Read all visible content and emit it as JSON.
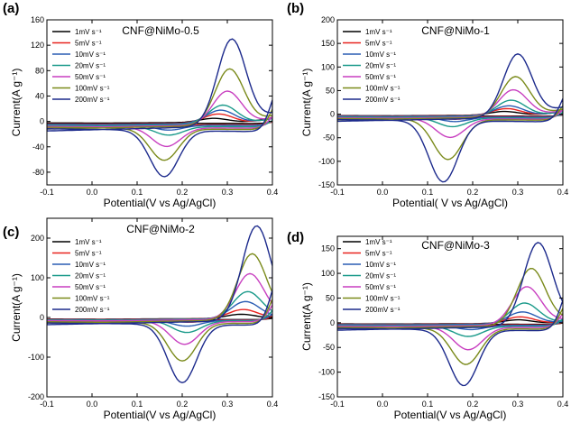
{
  "chart_data": [
    {
      "type": "line",
      "panel": "(a)",
      "title": "CNF@NiMo-0.5",
      "xlabel": "Potential(V vs Ag/AgCl)",
      "ylabel": "Current(A g⁻¹)",
      "xlim": [
        -0.1,
        0.4
      ],
      "ylim": [
        -100,
        160
      ],
      "xticks": [
        "-0.1",
        "0.0",
        "0.1",
        "0.2",
        "0.3",
        "0.4"
      ],
      "yticks": [
        "-80",
        "-40",
        "0",
        "40",
        "80",
        "120",
        "160"
      ],
      "legend_position": "upper-left",
      "series": [
        {
          "name": "1mV s⁻¹",
          "color": "#000000",
          "anodic_peak": [
            0.27,
            5
          ],
          "cathodic_peak": [
            0.17,
            -4
          ],
          "start_current": -3
        },
        {
          "name": "5mV s⁻¹",
          "color": "#e8231f",
          "anodic_peak": [
            0.28,
            12
          ],
          "cathodic_peak": [
            0.17,
            -9
          ],
          "start_current": -5
        },
        {
          "name": "10mV s⁻¹",
          "color": "#2a5db3",
          "anodic_peak": [
            0.285,
            18
          ],
          "cathodic_peak": [
            0.17,
            -14
          ],
          "start_current": -6
        },
        {
          "name": "20mV s⁻¹",
          "color": "#1a9a8a",
          "anodic_peak": [
            0.29,
            26
          ],
          "cathodic_peak": [
            0.17,
            -22
          ],
          "start_current": -8
        },
        {
          "name": "50mV s⁻¹",
          "color": "#c83fc0",
          "anodic_peak": [
            0.3,
            48
          ],
          "cathodic_peak": [
            0.165,
            -40
          ],
          "start_current": -10
        },
        {
          "name": "100mV s⁻¹",
          "color": "#7a8a1a",
          "anodic_peak": [
            0.305,
            83
          ],
          "cathodic_peak": [
            0.16,
            -62
          ],
          "start_current": -12
        },
        {
          "name": "200mV s⁻¹",
          "color": "#1c2a8c",
          "anodic_peak": [
            0.31,
            130
          ],
          "cathodic_peak": [
            0.16,
            -88
          ],
          "start_current": -15
        }
      ]
    },
    {
      "type": "line",
      "panel": "(b)",
      "title": "CNF@NiMo-1",
      "xlabel": "Potential( V vs Ag/AgCl)",
      "ylabel": "Current(A g⁻¹)",
      "xlim": [
        -0.1,
        0.4
      ],
      "ylim": [
        -150,
        200
      ],
      "xticks": [
        "-0.1",
        "0.0",
        "0.1",
        "0.2",
        "0.3",
        "0.4"
      ],
      "yticks": [
        "-150",
        "-100",
        "-50",
        "0",
        "50",
        "100",
        "150",
        "200"
      ],
      "legend_position": "upper-left",
      "series": [
        {
          "name": "1mV s⁻¹",
          "color": "#000000",
          "anodic_peak": [
            0.27,
            6
          ],
          "cathodic_peak": [
            0.16,
            -6
          ],
          "start_current": -4
        },
        {
          "name": "5mV s⁻¹",
          "color": "#e8231f",
          "anodic_peak": [
            0.275,
            12
          ],
          "cathodic_peak": [
            0.16,
            -11
          ],
          "start_current": -5
        },
        {
          "name": "10mV s⁻¹",
          "color": "#2a5db3",
          "anodic_peak": [
            0.28,
            18
          ],
          "cathodic_peak": [
            0.16,
            -16
          ],
          "start_current": -6
        },
        {
          "name": "20mV s⁻¹",
          "color": "#1a9a8a",
          "anodic_peak": [
            0.285,
            30
          ],
          "cathodic_peak": [
            0.155,
            -27
          ],
          "start_current": -8
        },
        {
          "name": "50mV s⁻¹",
          "color": "#c83fc0",
          "anodic_peak": [
            0.29,
            52
          ],
          "cathodic_peak": [
            0.15,
            -50
          ],
          "start_current": -10
        },
        {
          "name": "100mV s⁻¹",
          "color": "#7a8a1a",
          "anodic_peak": [
            0.295,
            80
          ],
          "cathodic_peak": [
            0.145,
            -97
          ],
          "start_current": -12
        },
        {
          "name": "200mV s⁻¹",
          "color": "#1c2a8c",
          "anodic_peak": [
            0.3,
            128
          ],
          "cathodic_peak": [
            0.135,
            -145
          ],
          "start_current": -15
        }
      ]
    },
    {
      "type": "line",
      "panel": "(c)",
      "title": "CNF@NiMo-2",
      "xlabel": "Potential(V vs Ag/AgCl)",
      "ylabel": "Current(A g⁻¹)",
      "xlim": [
        -0.1,
        0.4
      ],
      "ylim": [
        -200,
        250
      ],
      "xticks": [
        "-0.1",
        "0.0",
        "0.1",
        "0.2",
        "0.3",
        "0.4"
      ],
      "yticks": [
        "-200",
        "-100",
        "0",
        "100",
        "200"
      ],
      "legend_position": "upper-left",
      "series": [
        {
          "name": "1mV s⁻¹",
          "color": "#000000",
          "anodic_peak": [
            0.33,
            8
          ],
          "cathodic_peak": [
            0.22,
            -6
          ],
          "start_current": -5
        },
        {
          "name": "5mV s⁻¹",
          "color": "#e8231f",
          "anodic_peak": [
            0.335,
            20
          ],
          "cathodic_peak": [
            0.215,
            -12
          ],
          "start_current": -6
        },
        {
          "name": "10mV s⁻¹",
          "color": "#2a5db3",
          "anodic_peak": [
            0.34,
            40
          ],
          "cathodic_peak": [
            0.21,
            -22
          ],
          "start_current": -7
        },
        {
          "name": "20mV s⁻¹",
          "color": "#1a9a8a",
          "anodic_peak": [
            0.345,
            65
          ],
          "cathodic_peak": [
            0.21,
            -38
          ],
          "start_current": -8
        },
        {
          "name": "50mV s⁻¹",
          "color": "#c83fc0",
          "anodic_peak": [
            0.35,
            110
          ],
          "cathodic_peak": [
            0.205,
            -68
          ],
          "start_current": -10
        },
        {
          "name": "100mV s⁻¹",
          "color": "#7a8a1a",
          "anodic_peak": [
            0.355,
            160
          ],
          "cathodic_peak": [
            0.2,
            -110
          ],
          "start_current": -14
        },
        {
          "name": "200mV s⁻¹",
          "color": "#1c2a8c",
          "anodic_peak": [
            0.365,
            230
          ],
          "cathodic_peak": [
            0.2,
            -165
          ],
          "start_current": -18
        }
      ]
    },
    {
      "type": "line",
      "panel": "(d)",
      "title": "CNF@NiMo-3",
      "xlabel": "Potential(V vs Ag/AgCl)",
      "ylabel": "Current(A g⁻¹)",
      "xlim": [
        -0.1,
        0.4
      ],
      "ylim": [
        -150,
        175
      ],
      "xticks": [
        "-0.1",
        "0.0",
        "0.1",
        "0.2",
        "0.3",
        "0.4"
      ],
      "yticks": [
        "-150",
        "-100",
        "-50",
        "0",
        "50",
        "100",
        "150"
      ],
      "legend_position": "upper-left",
      "series": [
        {
          "name": "1mV s⁻¹",
          "color": "#000000",
          "anodic_peak": [
            0.3,
            6
          ],
          "cathodic_peak": [
            0.2,
            -4
          ],
          "start_current": -3
        },
        {
          "name": "5mV s⁻¹",
          "color": "#e8231f",
          "anodic_peak": [
            0.305,
            12
          ],
          "cathodic_peak": [
            0.195,
            -9
          ],
          "start_current": -4
        },
        {
          "name": "10mV s⁻¹",
          "color": "#2a5db3",
          "anodic_peak": [
            0.31,
            22
          ],
          "cathodic_peak": [
            0.195,
            -14
          ],
          "start_current": -5
        },
        {
          "name": "20mV s⁻¹",
          "color": "#1a9a8a",
          "anodic_peak": [
            0.315,
            40
          ],
          "cathodic_peak": [
            0.19,
            -28
          ],
          "start_current": -7
        },
        {
          "name": "50mV s⁻¹",
          "color": "#c83fc0",
          "anodic_peak": [
            0.32,
            73
          ],
          "cathodic_peak": [
            0.19,
            -55
          ],
          "start_current": -9
        },
        {
          "name": "100mV s⁻¹",
          "color": "#7a8a1a",
          "anodic_peak": [
            0.33,
            110
          ],
          "cathodic_peak": [
            0.185,
            -85
          ],
          "start_current": -12
        },
        {
          "name": "200mV s⁻¹",
          "color": "#1c2a8c",
          "anodic_peak": [
            0.345,
            162
          ],
          "cathodic_peak": [
            0.18,
            -128
          ],
          "start_current": -15
        }
      ]
    }
  ]
}
